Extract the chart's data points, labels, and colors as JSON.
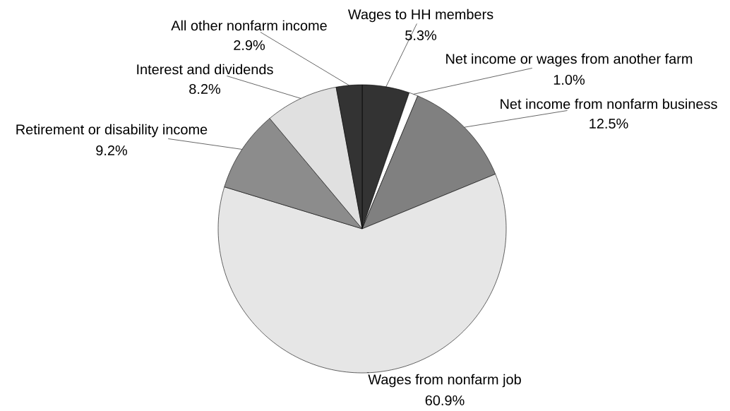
{
  "chart_data": {
    "type": "pie",
    "categories": [
      "Wages to HH members",
      "Net income or wages from another farm",
      "Net income from nonfarm business",
      "Wages from nonfarm job",
      "Retirement or disability income",
      "Interest and dividends",
      "All other nonfarm income"
    ],
    "values": [
      5.3,
      1.0,
      12.5,
      60.9,
      9.2,
      8.2,
      2.9
    ],
    "value_labels": [
      "5.3%",
      "1.0%",
      "12.5%",
      "60.9%",
      "9.2%",
      "8.2%",
      "2.9%"
    ],
    "colors": [
      "#333333",
      "#ffffff",
      "#808080",
      "#e6e6e6",
      "#8c8c8c",
      "#e0e0e0",
      "#333333"
    ]
  }
}
